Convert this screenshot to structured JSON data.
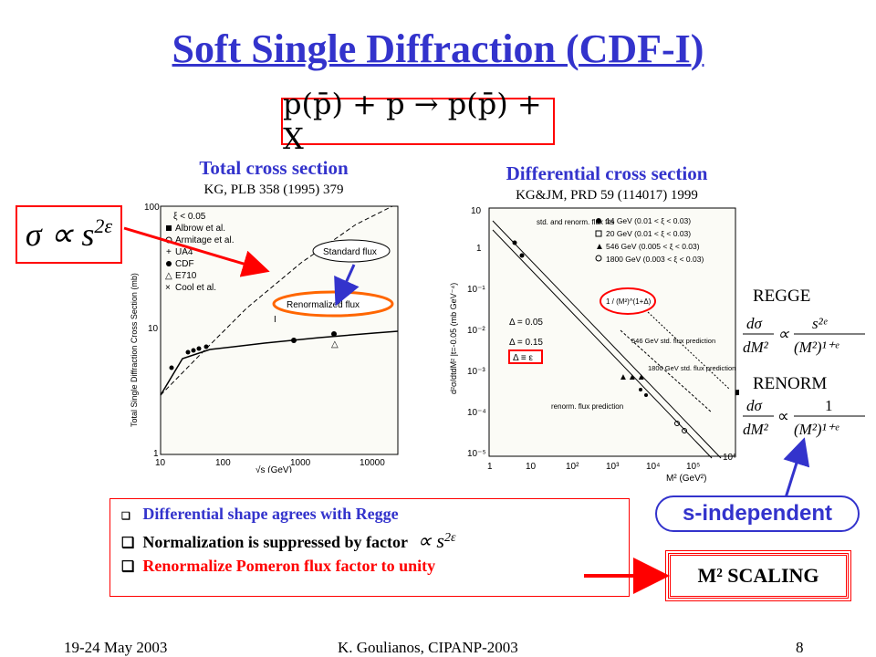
{
  "slide": {
    "title": "Soft Single Diffraction (CDF-I)",
    "reaction": "p(p̄) + p → p(p̄) + X",
    "sigma_formula": "σ ∝ s",
    "sigma_exponent": "2ε",
    "left_plot": {
      "heading": "Total cross section",
      "reference": "KG, PLB 358 (1995) 379",
      "ylabel": "Total Single Diffraction Cross Section (mb)",
      "xlabel": "√s (GeV)",
      "yticks": [
        "100",
        "10",
        "1"
      ],
      "xticks": [
        "10",
        "100",
        "1000",
        "10000"
      ],
      "legend": [
        "ξ < 0.05",
        "Albrow et al.",
        "Armitage et al.",
        "UA4",
        "CDF",
        "E710",
        "Cool et al."
      ],
      "standard_flux": "Standard flux",
      "renormalized_flux": "Renormalized flux"
    },
    "right_plot": {
      "heading": "Differential cross section",
      "reference": "KG&JM, PRD 59 (114017) 1999",
      "ylabel": "d²σ/dtdM² |t=-0.05 (mb GeV⁻⁴)",
      "xlabel": "M² (GeV²)",
      "yticks": [
        "10",
        "1",
        "10⁻¹",
        "10⁻²",
        "10⁻³",
        "10⁻⁴",
        "10⁻⁵"
      ],
      "xticks": [
        "1",
        "10",
        "10²",
        "10³",
        "10⁴",
        "10⁵",
        "10⁶"
      ],
      "legend": [
        "14 GeV  (0.01 < ξ < 0.03)",
        "20 GeV  (0.01 < ξ < 0.03)",
        "546 GeV (0.005 < ξ < 0.03)",
        "1800 GeV (0.003 < ξ < 0.03)"
      ],
      "fits_note": "std. and renorm. flux fits",
      "delta1": "Δ = 0.05",
      "delta2": "Δ = 0.15",
      "delta_eq": "Δ ≡ ε",
      "inset": "1 / (M²)^(1+Δ)",
      "std546": "546 GeV std. flux prediction",
      "std1800": "1800 GeV std. flux prediction",
      "renorm": "renorm. flux prediction"
    },
    "regge_label": "REGGE",
    "renorm_label": "RENORM",
    "s_independent": "s-independent",
    "bullets": [
      "Differential shape agrees with Regge",
      "Normalization is suppressed by factor",
      "Renormalize Pomeron flux factor to unity"
    ],
    "bullet_formula": "∝ s",
    "m2_scaling": "M² SCALING",
    "footer": {
      "date": "19-24 May 2003",
      "author": "K. Goulianos, CIPANP-2003",
      "page": "8"
    }
  }
}
